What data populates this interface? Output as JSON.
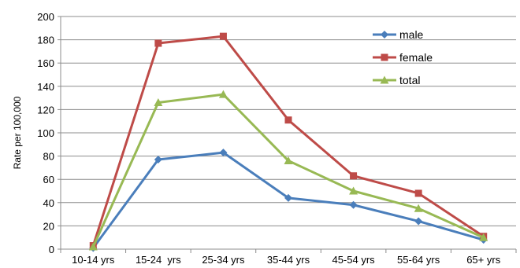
{
  "chart_data": {
    "type": "line",
    "categories": [
      "10-14 yrs",
      "15-24  yrs",
      "25-34 yrs",
      "35-44 yrs",
      "45-54 yrs",
      "55-64 yrs",
      "65+ yrs"
    ],
    "ylabel": "Rate per 100,000",
    "ylim": [
      0,
      200
    ],
    "yticks": [
      "0",
      "20",
      "40",
      "60",
      "80",
      "100",
      "120",
      "140",
      "160",
      "180",
      "200"
    ],
    "grid": true,
    "legend_position": "top-right",
    "series": [
      {
        "name": "male",
        "color": "#4a7ebb",
        "marker": "diamond",
        "values": [
          1,
          77,
          83,
          44,
          38,
          24,
          8
        ]
      },
      {
        "name": "female",
        "color": "#be4b48",
        "marker": "square",
        "values": [
          3,
          177,
          183,
          111,
          63,
          48,
          11
        ]
      },
      {
        "name": "total",
        "color": "#98b954",
        "marker": "triangle",
        "values": [
          2,
          126,
          133,
          76,
          50,
          35,
          10
        ]
      }
    ]
  }
}
